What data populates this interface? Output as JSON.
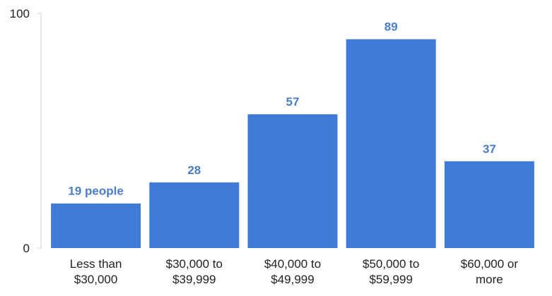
{
  "chart_data": {
    "type": "bar",
    "categories": [
      "Less than $30,000",
      "$30,000 to $39,999",
      "$40,000 to $49,999",
      "$50,000 to $59,999",
      "$60,000 or more"
    ],
    "values": [
      19,
      28,
      57,
      89,
      37
    ],
    "value_labels": [
      "19 people",
      "28",
      "57",
      "89",
      "37"
    ],
    "color": "#3f7ad6",
    "ylim": [
      0,
      100
    ],
    "yticks": [
      0,
      100
    ]
  }
}
